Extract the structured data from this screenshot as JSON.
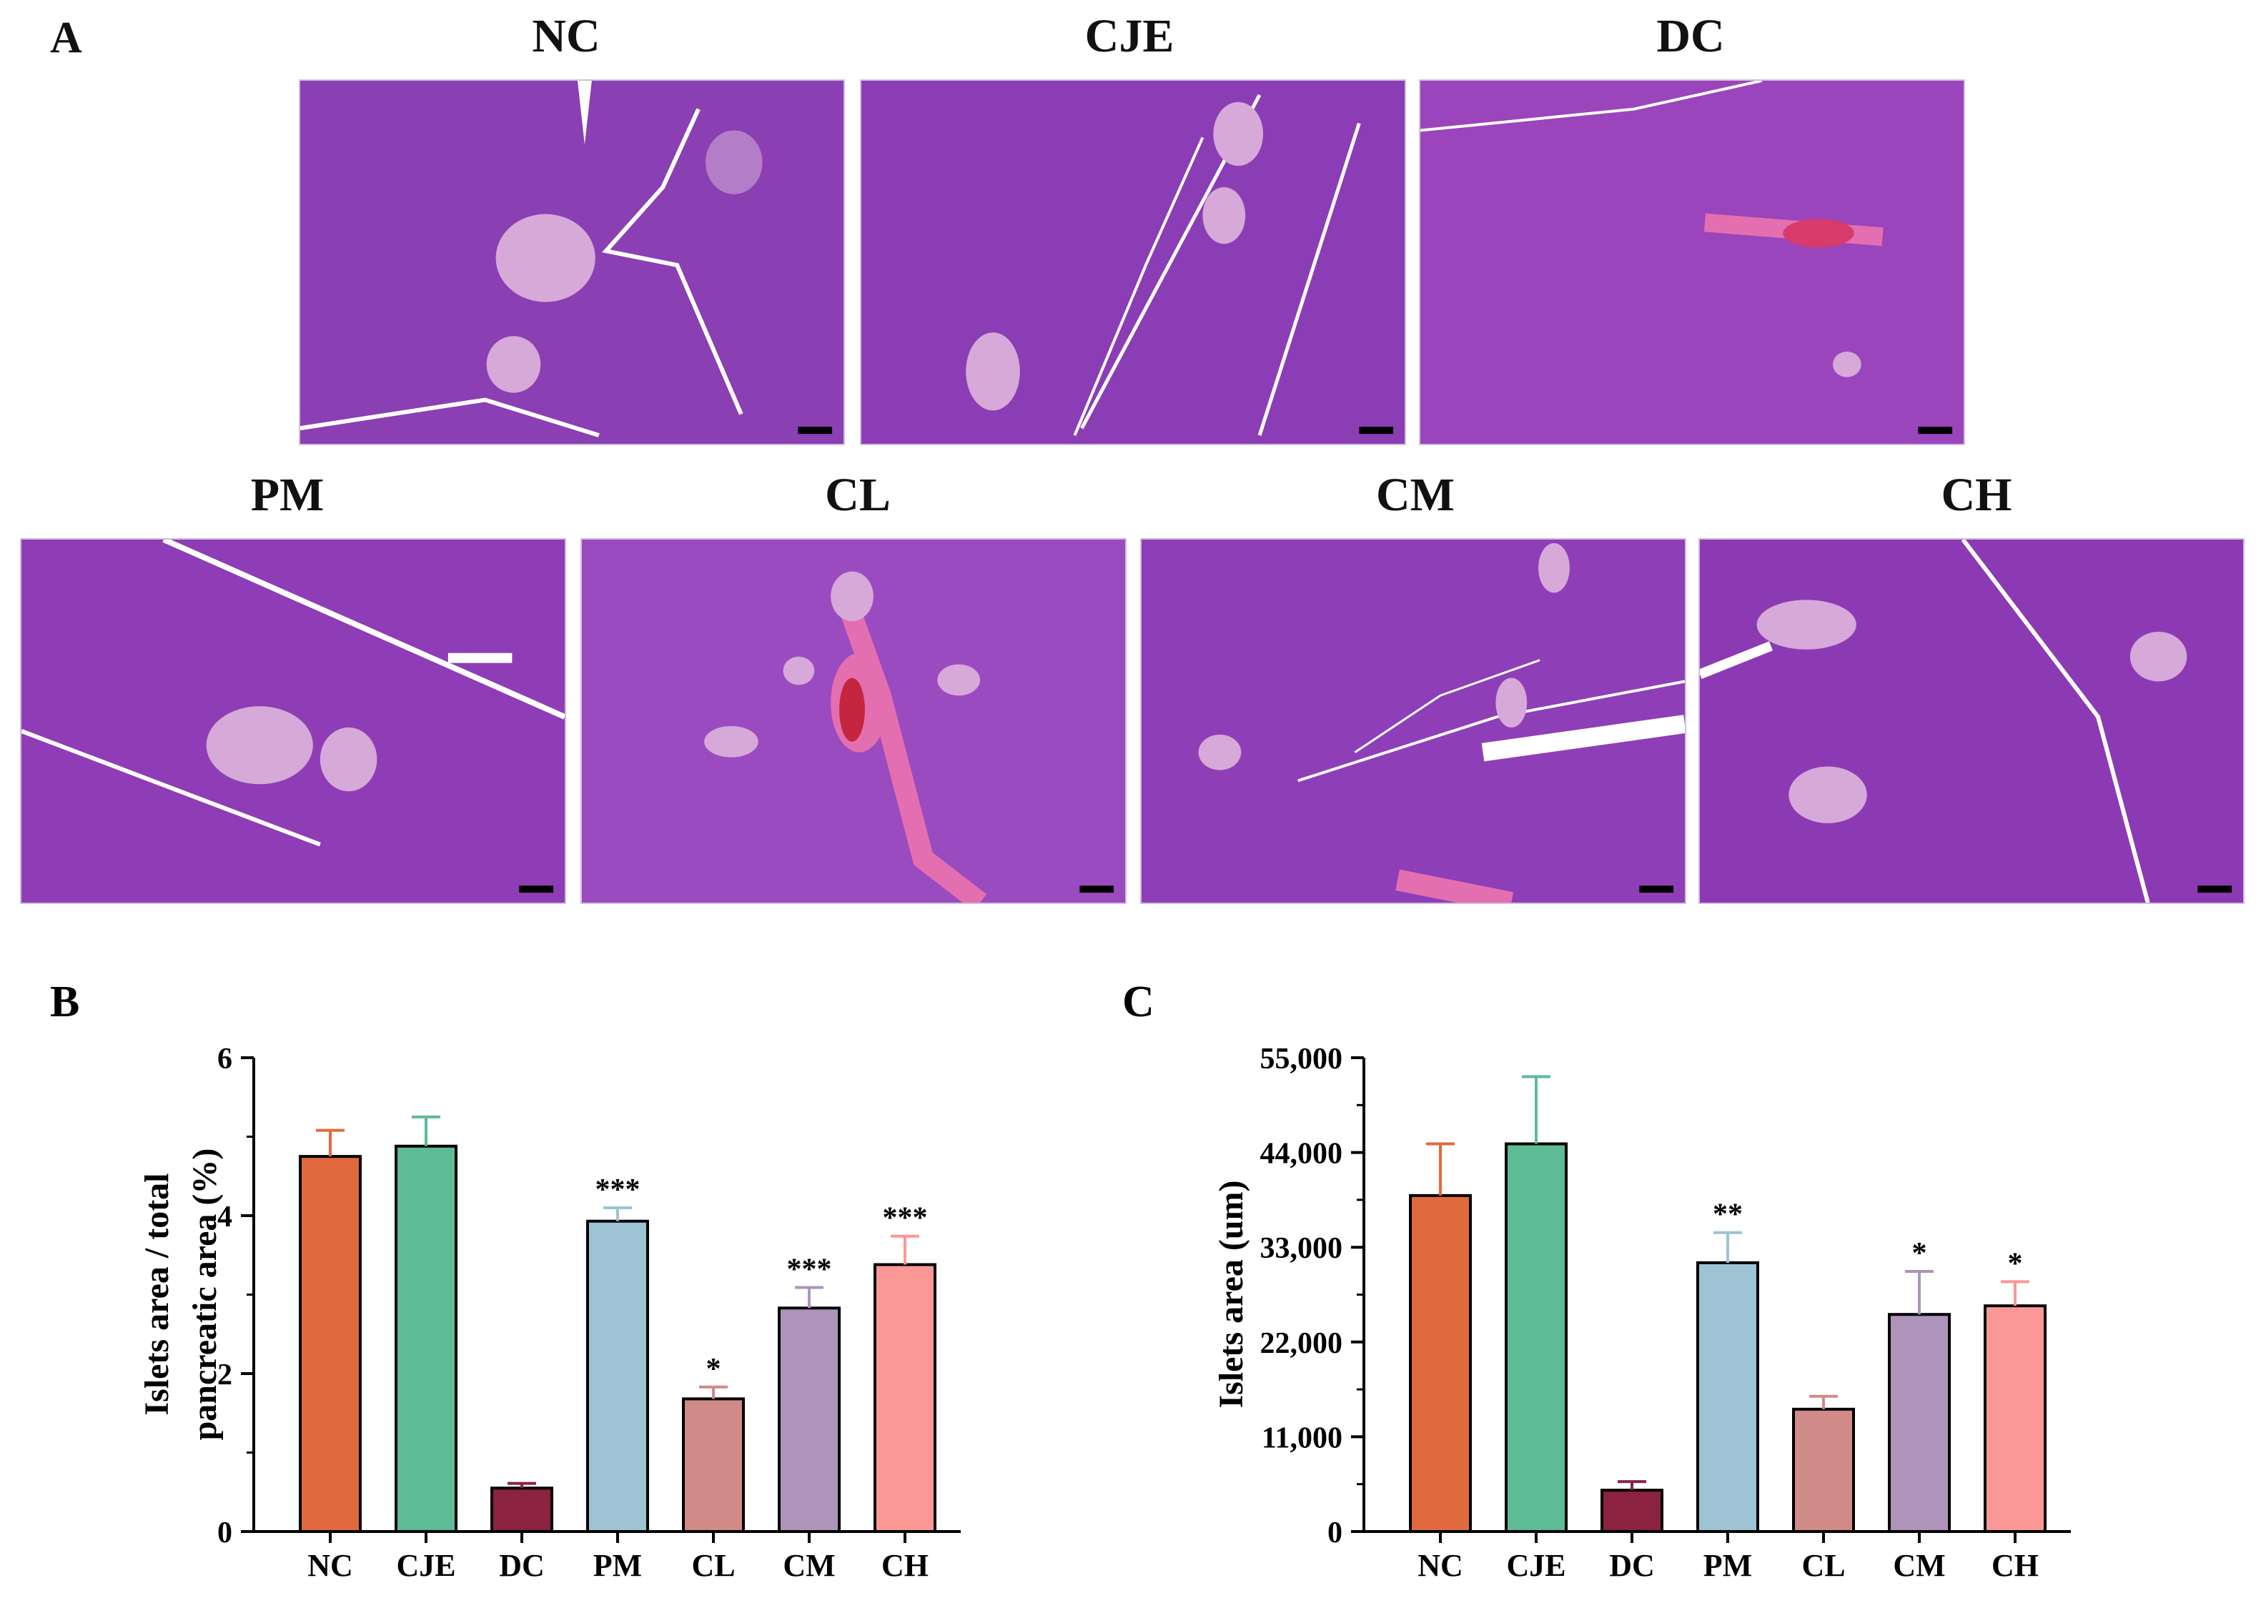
{
  "panel_a": {
    "letter": "A",
    "images": [
      {
        "label": "NC"
      },
      {
        "label": "CJE"
      },
      {
        "label": "DC"
      },
      {
        "label": "PM"
      },
      {
        "label": "CL"
      },
      {
        "label": "CM"
      },
      {
        "label": "CH"
      }
    ]
  },
  "chart_data": [
    {
      "panel_letter": "B",
      "type": "bar",
      "categories": [
        "NC",
        "CJE",
        "DC",
        "PM",
        "CL",
        "CM",
        "CH"
      ],
      "values": [
        4.75,
        4.88,
        0.55,
        3.93,
        1.68,
        2.83,
        3.38
      ],
      "errors": [
        0.33,
        0.37,
        0.06,
        0.17,
        0.15,
        0.26,
        0.36
      ],
      "significance": [
        "",
        "",
        "",
        "***",
        "*",
        "***",
        "***"
      ],
      "colors": [
        "#e06a3e",
        "#5dbb96",
        "#8b2240",
        "#9dc3d4",
        "#d08a88",
        "#ae94bb",
        "#fa9896"
      ],
      "ylabel_line1": "Islets area / total",
      "ylabel_line2": "pancreatic area  (%)",
      "ylim": [
        0,
        6
      ],
      "yticks": [
        0,
        2,
        4,
        6
      ],
      "ytick_labels": [
        "0",
        "2",
        "4",
        "6"
      ],
      "minor_ticks": [
        1,
        3,
        5
      ]
    },
    {
      "panel_letter": "C",
      "type": "bar",
      "categories": [
        "NC",
        "CJE",
        "DC",
        "PM",
        "CL",
        "CM",
        "CH"
      ],
      "values": [
        39000,
        45000,
        4800,
        31200,
        14200,
        25200,
        26200
      ],
      "errors": [
        6000,
        7800,
        1000,
        3500,
        1500,
        5000,
        2800
      ],
      "significance": [
        "",
        "",
        "",
        "**",
        "",
        "*",
        "*"
      ],
      "colors": [
        "#e06a3e",
        "#5dbb96",
        "#8b2240",
        "#9dc3d4",
        "#d08a88",
        "#ae94bb",
        "#fa9896"
      ],
      "ylabel_line1": "Islets area (um)",
      "ylabel_line2": "",
      "ylim": [
        0,
        55000
      ],
      "yticks": [
        0,
        11000,
        22000,
        33000,
        44000,
        55000
      ],
      "ytick_labels": [
        "0",
        "11,000",
        "22,000",
        "33,000",
        "44,000",
        "55,000"
      ],
      "minor_ticks": [
        5500,
        16500,
        27500,
        38500,
        49500
      ]
    }
  ]
}
